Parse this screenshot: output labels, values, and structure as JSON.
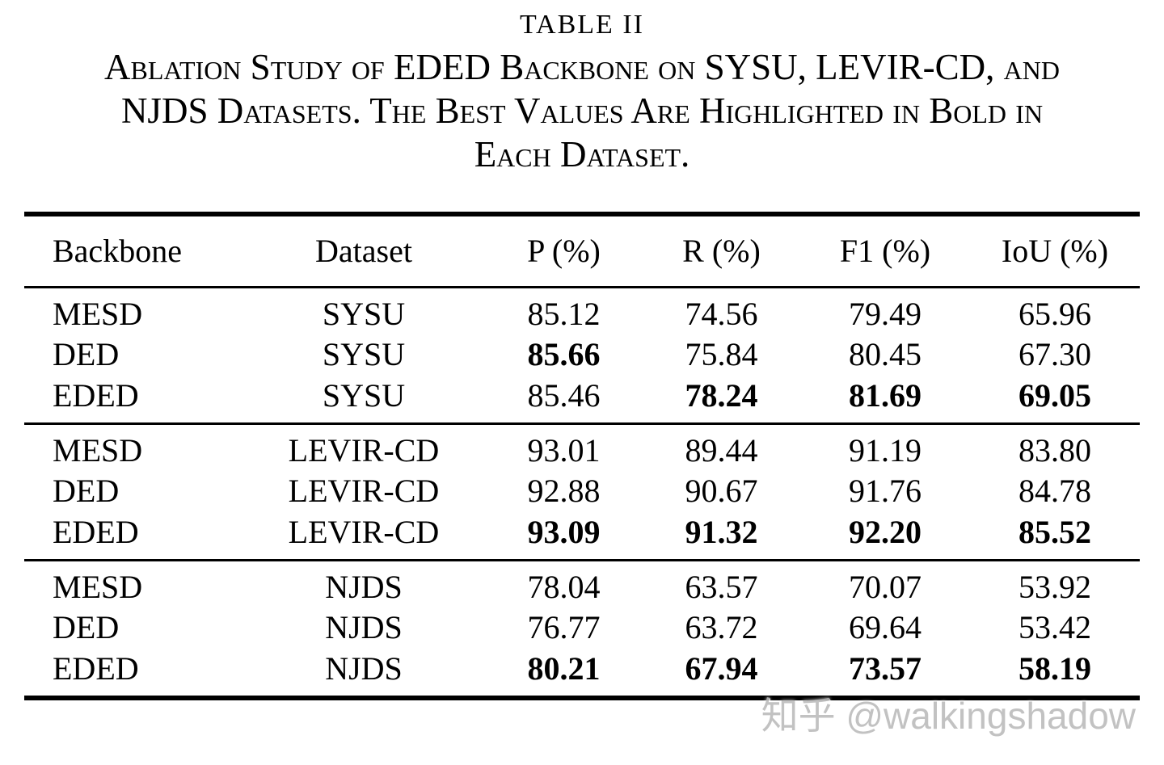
{
  "page": {
    "title": "TABLE II",
    "caption_lines": [
      "Ablation Study of EDED Backbone on SYSU, LEVIR-CD, and",
      "NJDS Datasets. The Best Values Are Highlighted in Bold in",
      "Each Dataset."
    ],
    "watermark": "知乎 @walkingshadow"
  },
  "chart_data": {
    "type": "table",
    "title": "TABLE II",
    "caption": "Ablation Study of EDED Backbone on SYSU, LEVIR-CD, and NJDS Datasets. The Best Values Are Highlighted in Bold in Each Dataset.",
    "columns": [
      "Backbone",
      "Dataset",
      "P (%)",
      "R (%)",
      "F1 (%)",
      "IoU (%)"
    ],
    "groups": [
      {
        "dataset": "SYSU",
        "rows": [
          {
            "cells": [
              "MESD",
              "SYSU",
              "85.12",
              "74.56",
              "79.49",
              "65.96"
            ],
            "bold": [
              false,
              false,
              false,
              false,
              false,
              false
            ]
          },
          {
            "cells": [
              "DED",
              "SYSU",
              "85.66",
              "75.84",
              "80.45",
              "67.30"
            ],
            "bold": [
              false,
              false,
              true,
              false,
              false,
              false
            ]
          },
          {
            "cells": [
              "EDED",
              "SYSU",
              "85.46",
              "78.24",
              "81.69",
              "69.05"
            ],
            "bold": [
              false,
              false,
              false,
              true,
              true,
              true
            ]
          }
        ]
      },
      {
        "dataset": "LEVIR-CD",
        "rows": [
          {
            "cells": [
              "MESD",
              "LEVIR-CD",
              "93.01",
              "89.44",
              "91.19",
              "83.80"
            ],
            "bold": [
              false,
              false,
              false,
              false,
              false,
              false
            ]
          },
          {
            "cells": [
              "DED",
              "LEVIR-CD",
              "92.88",
              "90.67",
              "91.76",
              "84.78"
            ],
            "bold": [
              false,
              false,
              false,
              false,
              false,
              false
            ]
          },
          {
            "cells": [
              "EDED",
              "LEVIR-CD",
              "93.09",
              "91.32",
              "92.20",
              "85.52"
            ],
            "bold": [
              false,
              false,
              true,
              true,
              true,
              true
            ]
          }
        ]
      },
      {
        "dataset": "NJDS",
        "rows": [
          {
            "cells": [
              "MESD",
              "NJDS",
              "78.04",
              "63.57",
              "70.07",
              "53.92"
            ],
            "bold": [
              false,
              false,
              false,
              false,
              false,
              false
            ]
          },
          {
            "cells": [
              "DED",
              "NJDS",
              "76.77",
              "63.72",
              "69.64",
              "53.42"
            ],
            "bold": [
              false,
              false,
              false,
              false,
              false,
              false
            ]
          },
          {
            "cells": [
              "EDED",
              "NJDS",
              "80.21",
              "67.94",
              "73.57",
              "58.19"
            ],
            "bold": [
              false,
              false,
              true,
              true,
              true,
              true
            ]
          }
        ]
      }
    ]
  }
}
